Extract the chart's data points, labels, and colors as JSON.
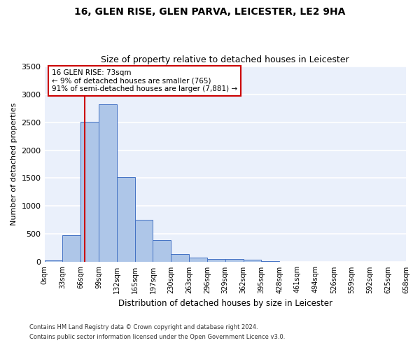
{
  "title": "16, GLEN RISE, GLEN PARVA, LEICESTER, LE2 9HA",
  "subtitle": "Size of property relative to detached houses in Leicester",
  "xlabel": "Distribution of detached houses by size in Leicester",
  "ylabel": "Number of detached properties",
  "bar_values": [
    30,
    480,
    2510,
    2820,
    1520,
    750,
    390,
    145,
    80,
    60,
    55,
    40,
    20,
    0,
    0,
    0,
    0,
    0,
    0,
    0
  ],
  "bin_labels": [
    "0sqm",
    "33sqm",
    "66sqm",
    "99sqm",
    "132sqm",
    "165sqm",
    "197sqm",
    "230sqm",
    "263sqm",
    "296sqm",
    "329sqm",
    "362sqm",
    "395sqm",
    "428sqm",
    "461sqm",
    "494sqm",
    "526sqm",
    "559sqm",
    "592sqm",
    "625sqm",
    "658sqm"
  ],
  "bar_color": "#aec6e8",
  "bar_edge_color": "#4472c4",
  "bg_color": "#eaf0fb",
  "grid_color": "#ffffff",
  "property_line_color": "#cc0000",
  "annotation_text": "16 GLEN RISE: 73sqm\n← 9% of detached houses are smaller (765)\n91% of semi-detached houses are larger (7,881) →",
  "annotation_box_color": "#cc0000",
  "ylim": [
    0,
    3500
  ],
  "yticks": [
    0,
    500,
    1000,
    1500,
    2000,
    2500,
    3000,
    3500
  ],
  "footnote1": "Contains HM Land Registry data © Crown copyright and database right 2024.",
  "footnote2": "Contains public sector information licensed under the Open Government Licence v3.0."
}
